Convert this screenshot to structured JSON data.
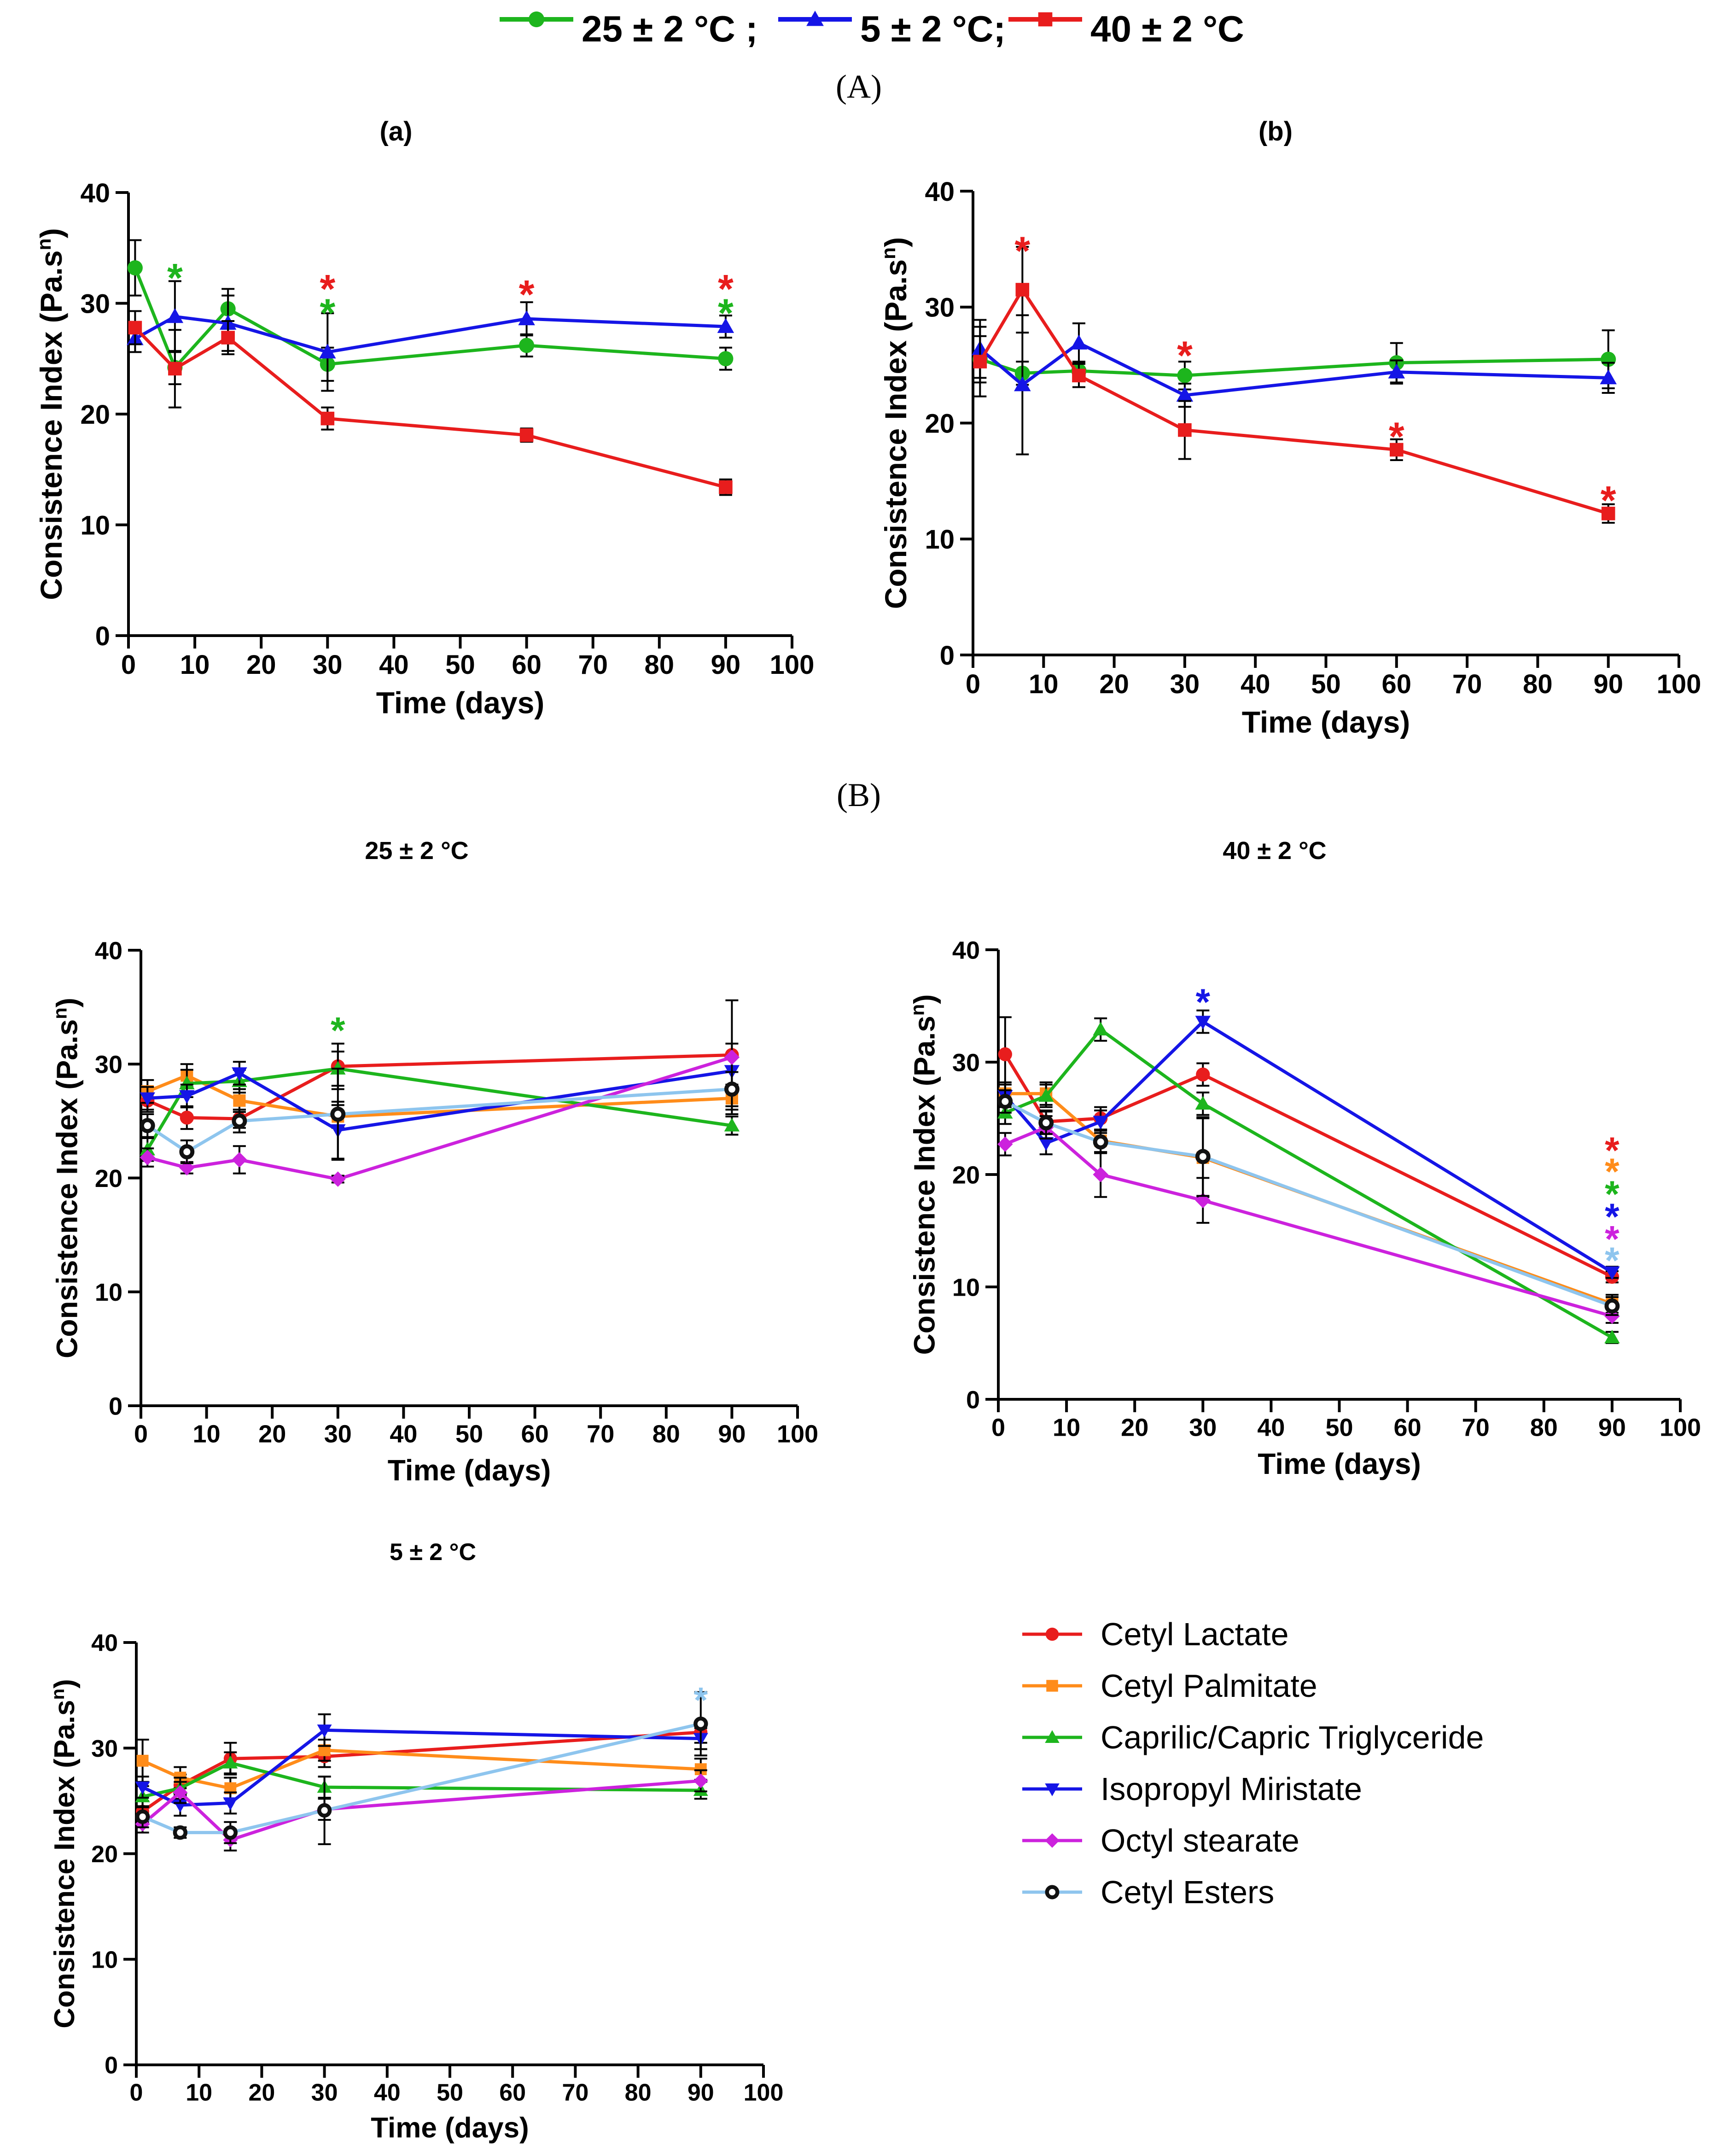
{
  "figure": {
    "panel_A_label": "(A)",
    "panel_B_label": "(B)"
  },
  "colors": {
    "t25": "#1db51d",
    "t5": "#1515e6",
    "t40": "#e81d1d",
    "cetyl_lactate": "#e81d1d",
    "cetyl_palmitate": "#ff8c1a",
    "capric": "#1db51d",
    "isopropyl": "#1515e6",
    "octyl": "#cc22dd",
    "cetyl_esters": "#8ec5ee"
  },
  "top_legend": [
    {
      "label": "25 ± 2 °C ;",
      "color_key": "t25",
      "marker": "circle"
    },
    {
      "label": "5 ± 2 °C;",
      "color_key": "t5",
      "marker": "triangle"
    },
    {
      "label": "40 ± 2 °C",
      "color_key": "t40",
      "marker": "square"
    }
  ],
  "bottom_legend": [
    {
      "label": "Cetyl Lactate",
      "color_key": "cetyl_lactate",
      "marker": "circle"
    },
    {
      "label": "Cetyl Palmitate",
      "color_key": "cetyl_palmitate",
      "marker": "square"
    },
    {
      "label": "Caprilic/Capric Triglyceride",
      "color_key": "capric",
      "marker": "triangle"
    },
    {
      "label": "Isopropyl Miristate",
      "color_key": "isopropyl",
      "marker": "triangle-down"
    },
    {
      "label": "Octyl   stearate",
      "color_key": "octyl",
      "marker": "diamond"
    },
    {
      "label": "Cetyl Esters",
      "color_key": "cetyl_esters",
      "marker": "ring"
    }
  ],
  "chart_data": [
    {
      "id": "a",
      "type": "line",
      "title": "(a)",
      "xlabel": "Time (days)",
      "ylabel": "Consistence Index (Pa.s",
      "ylabel_sup": "n",
      "ylabel_tail": ")",
      "xlim": [
        0,
        100
      ],
      "ylim": [
        0,
        40
      ],
      "xticks": [
        0,
        10,
        20,
        30,
        40,
        50,
        60,
        70,
        80,
        90,
        100
      ],
      "yticks": [
        0,
        10,
        20,
        30,
        40
      ],
      "series": [
        {
          "name": "25 ± 2 °C",
          "color_key": "t25",
          "marker": "circle",
          "x": [
            1,
            7,
            15,
            30,
            60,
            90
          ],
          "y": [
            33.2,
            24.2,
            29.5,
            24.5,
            26.2,
            25.0
          ],
          "err": [
            2.5,
            1.5,
            1.8,
            1.5,
            1.0,
            1.0
          ]
        },
        {
          "name": "5 ± 2 °C",
          "color_key": "t5",
          "marker": "triangle",
          "x": [
            1,
            7,
            15,
            30,
            60,
            90
          ],
          "y": [
            26.8,
            28.8,
            28.2,
            25.6,
            28.6,
            27.9
          ],
          "err": [
            1.2,
            3.2,
            2.5,
            3.5,
            1.5,
            1.0
          ]
        },
        {
          "name": "40 ± 2 °C",
          "color_key": "t40",
          "marker": "square",
          "x": [
            1,
            7,
            15,
            30,
            60,
            90
          ],
          "y": [
            27.8,
            24.1,
            26.9,
            19.6,
            18.1,
            13.4
          ],
          "err": [
            1.5,
            3.5,
            1.5,
            1.0,
            0.6,
            0.7
          ]
        }
      ],
      "annotations": [
        {
          "text": "*",
          "x": 7,
          "y": 33.0,
          "color_key": "t25"
        },
        {
          "text": "*",
          "x": 30,
          "y": 32.0,
          "color_key": "t40"
        },
        {
          "text": "*",
          "x": 30,
          "y": 29.8,
          "color_key": "t25"
        },
        {
          "text": "*",
          "x": 60,
          "y": 31.5,
          "color_key": "t40"
        },
        {
          "text": "*",
          "x": 90,
          "y": 32.0,
          "color_key": "t40"
        },
        {
          "text": "*",
          "x": 90,
          "y": 29.8,
          "color_key": "t25"
        }
      ]
    },
    {
      "id": "b",
      "type": "line",
      "title": "(b)",
      "xlabel": "Time (days)",
      "ylabel": "Consistence Index (Pa.s",
      "ylabel_sup": "n",
      "ylabel_tail": ")",
      "xlim": [
        0,
        100
      ],
      "ylim": [
        0,
        40
      ],
      "xticks": [
        0,
        10,
        20,
        30,
        40,
        50,
        60,
        70,
        80,
        90,
        100
      ],
      "yticks": [
        0,
        10,
        20,
        30,
        40
      ],
      "series": [
        {
          "name": "25 ± 2 °C",
          "color_key": "t25",
          "marker": "circle",
          "x": [
            1,
            7,
            15,
            30,
            60,
            90
          ],
          "y": [
            25.5,
            24.3,
            24.5,
            24.1,
            25.2,
            25.5
          ],
          "err": [
            2.0,
            1.0,
            0.8,
            1.2,
            1.7,
            2.5
          ]
        },
        {
          "name": "5 ± 2 °C",
          "color_key": "t5",
          "marker": "triangle",
          "x": [
            1,
            7,
            15,
            30,
            60,
            90
          ],
          "y": [
            26.4,
            23.3,
            26.9,
            22.4,
            24.4,
            23.9
          ],
          "err": [
            2.5,
            6.0,
            1.7,
            1.0,
            1.0,
            1.3
          ]
        },
        {
          "name": "40 ± 2 °C",
          "color_key": "t40",
          "marker": "square",
          "x": [
            1,
            7,
            15,
            30,
            60,
            90
          ],
          "y": [
            25.3,
            31.5,
            24.1,
            19.4,
            17.7,
            12.2
          ],
          "err": [
            3.0,
            3.7,
            1.0,
            2.5,
            0.9,
            0.8
          ]
        }
      ],
      "annotations": [
        {
          "text": "*",
          "x": 7,
          "y": 35.5,
          "color_key": "t40"
        },
        {
          "text": "*",
          "x": 30,
          "y": 26.5,
          "color_key": "t40"
        },
        {
          "text": "*",
          "x": 60,
          "y": 19.5,
          "color_key": "t40"
        },
        {
          "text": "*",
          "x": 90,
          "y": 14.0,
          "color_key": "t40"
        }
      ]
    },
    {
      "id": "b25",
      "type": "line",
      "title": "25 ± 2 °C",
      "xlabel": "Time (days)",
      "ylabel": "Consistence Index (Pa.s",
      "ylabel_sup": "n",
      "ylabel_tail": ")",
      "xlim": [
        0,
        100
      ],
      "ylim": [
        0,
        40
      ],
      "xticks": [
        0,
        10,
        20,
        30,
        40,
        50,
        60,
        70,
        80,
        90,
        100
      ],
      "yticks": [
        0,
        10,
        20,
        30,
        40
      ],
      "series": [
        {
          "name": "Cetyl Lactate",
          "color_key": "cetyl_lactate",
          "marker": "circle",
          "x": [
            1,
            7,
            15,
            30,
            90
          ],
          "y": [
            26.8,
            25.3,
            25.2,
            29.8,
            30.8
          ],
          "err": [
            1.0,
            1.0,
            0.8,
            2.0,
            1.0
          ]
        },
        {
          "name": "Cetyl Palmitate",
          "color_key": "cetyl_palmitate",
          "marker": "square",
          "x": [
            1,
            7,
            15,
            30,
            90
          ],
          "y": [
            27.6,
            29.0,
            26.8,
            25.4,
            27.0
          ],
          "err": [
            1.0,
            1.0,
            1.0,
            1.0,
            1.0
          ]
        },
        {
          "name": "Caprilic/Capric Triglyceride",
          "color_key": "capric",
          "marker": "triangle",
          "x": [
            1,
            7,
            15,
            30,
            90
          ],
          "y": [
            22.5,
            28.3,
            28.5,
            29.6,
            24.6
          ],
          "err": [
            1.0,
            1.2,
            1.0,
            1.5,
            0.8
          ]
        },
        {
          "name": "Isopropyl Miristate",
          "color_key": "isopropyl",
          "marker": "triangle-down",
          "x": [
            1,
            7,
            15,
            30,
            90
          ],
          "y": [
            27.0,
            27.2,
            29.2,
            24.2,
            29.4
          ],
          "err": [
            1.0,
            1.0,
            1.0,
            2.5,
            1.2
          ]
        },
        {
          "name": "Octyl   stearate",
          "color_key": "octyl",
          "marker": "diamond",
          "x": [
            1,
            7,
            15,
            30,
            90
          ],
          "y": [
            21.8,
            20.9,
            21.6,
            19.9,
            30.6
          ],
          "err": [
            0.8,
            0.5,
            1.2,
            0.3,
            5.0
          ]
        },
        {
          "name": "Cetyl Esters",
          "color_key": "cetyl_esters",
          "marker": "ring",
          "x": [
            1,
            7,
            15,
            30,
            90
          ],
          "y": [
            24.6,
            22.3,
            25.0,
            25.6,
            27.8
          ],
          "err": [
            1.0,
            1.0,
            1.0,
            4.0,
            1.5
          ]
        }
      ],
      "annotations": [
        {
          "text": "*",
          "x": 30,
          "y": 33.6,
          "color_key": "capric"
        }
      ]
    },
    {
      "id": "b40",
      "type": "line",
      "title": "40 ± 2 °C",
      "xlabel": "Time (days)",
      "ylabel": "Consistence Index (Pa.s",
      "ylabel_sup": "n",
      "ylabel_tail": ")",
      "xlim": [
        0,
        100
      ],
      "ylim": [
        0,
        40
      ],
      "xticks": [
        0,
        10,
        20,
        30,
        40,
        50,
        60,
        70,
        80,
        90,
        100
      ],
      "yticks": [
        0,
        10,
        20,
        30,
        40
      ],
      "series": [
        {
          "name": "Cetyl Lactate",
          "color_key": "cetyl_lactate",
          "marker": "circle",
          "x": [
            1,
            7,
            15,
            30,
            90
          ],
          "y": [
            30.7,
            24.7,
            25.0,
            28.9,
            10.9
          ],
          "err": [
            3.3,
            1.0,
            1.0,
            1.0,
            0.5
          ]
        },
        {
          "name": "Cetyl Palmitate",
          "color_key": "cetyl_palmitate",
          "marker": "square",
          "x": [
            1,
            7,
            15,
            30,
            90
          ],
          "y": [
            27.2,
            27.2,
            23.0,
            21.5,
            8.5
          ],
          "err": [
            1.0,
            1.0,
            1.0,
            3.5,
            0.8
          ]
        },
        {
          "name": "Caprilic/Capric Triglyceride",
          "color_key": "capric",
          "marker": "triangle",
          "x": [
            1,
            7,
            15,
            30,
            90
          ],
          "y": [
            25.5,
            27.0,
            32.9,
            26.3,
            5.5
          ],
          "err": [
            1.0,
            1.0,
            1.0,
            1.0,
            0.5
          ]
        },
        {
          "name": "Isopropyl Miristate",
          "color_key": "isopropyl",
          "marker": "triangle-down",
          "x": [
            1,
            7,
            15,
            30,
            90
          ],
          "y": [
            27.0,
            22.8,
            24.7,
            33.6,
            11.3
          ],
          "err": [
            1.0,
            1.0,
            1.0,
            1.0,
            0.5
          ]
        },
        {
          "name": "Octyl   stearate",
          "color_key": "octyl",
          "marker": "diamond",
          "x": [
            1,
            7,
            15,
            30,
            90
          ],
          "y": [
            22.7,
            24.2,
            20.0,
            17.7,
            7.4
          ],
          "err": [
            1.0,
            1.0,
            2.0,
            2.0,
            0.6
          ]
        },
        {
          "name": "Cetyl Esters",
          "color_key": "cetyl_esters",
          "marker": "ring",
          "x": [
            1,
            7,
            15,
            30,
            90
          ],
          "y": [
            26.5,
            24.6,
            22.9,
            21.6,
            8.3
          ],
          "err": [
            1.0,
            1.0,
            1.0,
            3.5,
            0.8
          ]
        }
      ],
      "annotations": [
        {
          "text": "*",
          "x": 30,
          "y": 36.0,
          "color_key": "isopropyl"
        },
        {
          "text": "*",
          "x": 90,
          "y": 22.8,
          "color_key": "cetyl_lactate"
        },
        {
          "text": "*",
          "x": 90,
          "y": 20.9,
          "color_key": "cetyl_palmitate"
        },
        {
          "text": "*",
          "x": 90,
          "y": 18.9,
          "color_key": "capric"
        },
        {
          "text": "*",
          "x": 90,
          "y": 16.9,
          "color_key": "isopropyl"
        },
        {
          "text": "*",
          "x": 90,
          "y": 14.9,
          "color_key": "octyl"
        },
        {
          "text": "*",
          "x": 90,
          "y": 13.0,
          "color_key": "cetyl_esters"
        }
      ]
    },
    {
      "id": "b5",
      "type": "line",
      "title": "5 ± 2 °C",
      "xlabel": "Time (days)",
      "ylabel": "Consistence Index (Pa.s",
      "ylabel_sup": "n",
      "ylabel_tail": ")",
      "xlim": [
        0,
        100
      ],
      "ylim": [
        0,
        40
      ],
      "xticks": [
        0,
        10,
        20,
        30,
        40,
        50,
        60,
        70,
        80,
        90,
        100
      ],
      "yticks": [
        0,
        10,
        20,
        30,
        40
      ],
      "series": [
        {
          "name": "Cetyl Lactate",
          "color_key": "cetyl_lactate",
          "marker": "circle",
          "x": [
            1,
            7,
            15,
            30,
            90
          ],
          "y": [
            24.0,
            26.5,
            29.0,
            29.2,
            31.5
          ],
          "err": [
            1.0,
            1.0,
            1.5,
            1.0,
            1.0
          ]
        },
        {
          "name": "Cetyl Palmitate",
          "color_key": "cetyl_palmitate",
          "marker": "square",
          "x": [
            1,
            7,
            15,
            30,
            90
          ],
          "y": [
            28.8,
            27.2,
            26.2,
            29.8,
            28.0
          ],
          "err": [
            2.0,
            1.0,
            1.0,
            1.0,
            1.0
          ]
        },
        {
          "name": "Caprilic/Capric Triglyceride",
          "color_key": "capric",
          "marker": "triangle",
          "x": [
            1,
            7,
            15,
            30,
            90
          ],
          "y": [
            25.4,
            26.2,
            28.6,
            26.3,
            26.0
          ],
          "err": [
            1.0,
            1.0,
            1.0,
            1.0,
            0.8
          ]
        },
        {
          "name": "Isopropyl Miristate",
          "color_key": "isopropyl",
          "marker": "triangle-down",
          "x": [
            1,
            7,
            15,
            30,
            90
          ],
          "y": [
            26.3,
            24.6,
            24.8,
            31.7,
            30.9
          ],
          "err": [
            1.0,
            1.0,
            1.0,
            1.5,
            1.0
          ]
        },
        {
          "name": "Octyl   stearate",
          "color_key": "octyl",
          "marker": "diamond",
          "x": [
            1,
            7,
            15,
            30,
            90
          ],
          "y": [
            22.8,
            25.8,
            21.3,
            24.2,
            26.9
          ],
          "err": [
            0.8,
            1.0,
            1.0,
            1.0,
            1.0
          ]
        },
        {
          "name": "Cetyl Esters",
          "color_key": "cetyl_esters",
          "marker": "ring",
          "x": [
            1,
            7,
            15,
            30,
            90
          ],
          "y": [
            23.5,
            22.0,
            22.0,
            24.1,
            32.3
          ],
          "err": [
            1.0,
            0.5,
            1.0,
            3.2,
            3.0
          ]
        }
      ],
      "annotations": [
        {
          "text": "*",
          "x": 90,
          "y": 35.2,
          "color_key": "cetyl_esters"
        }
      ]
    }
  ]
}
